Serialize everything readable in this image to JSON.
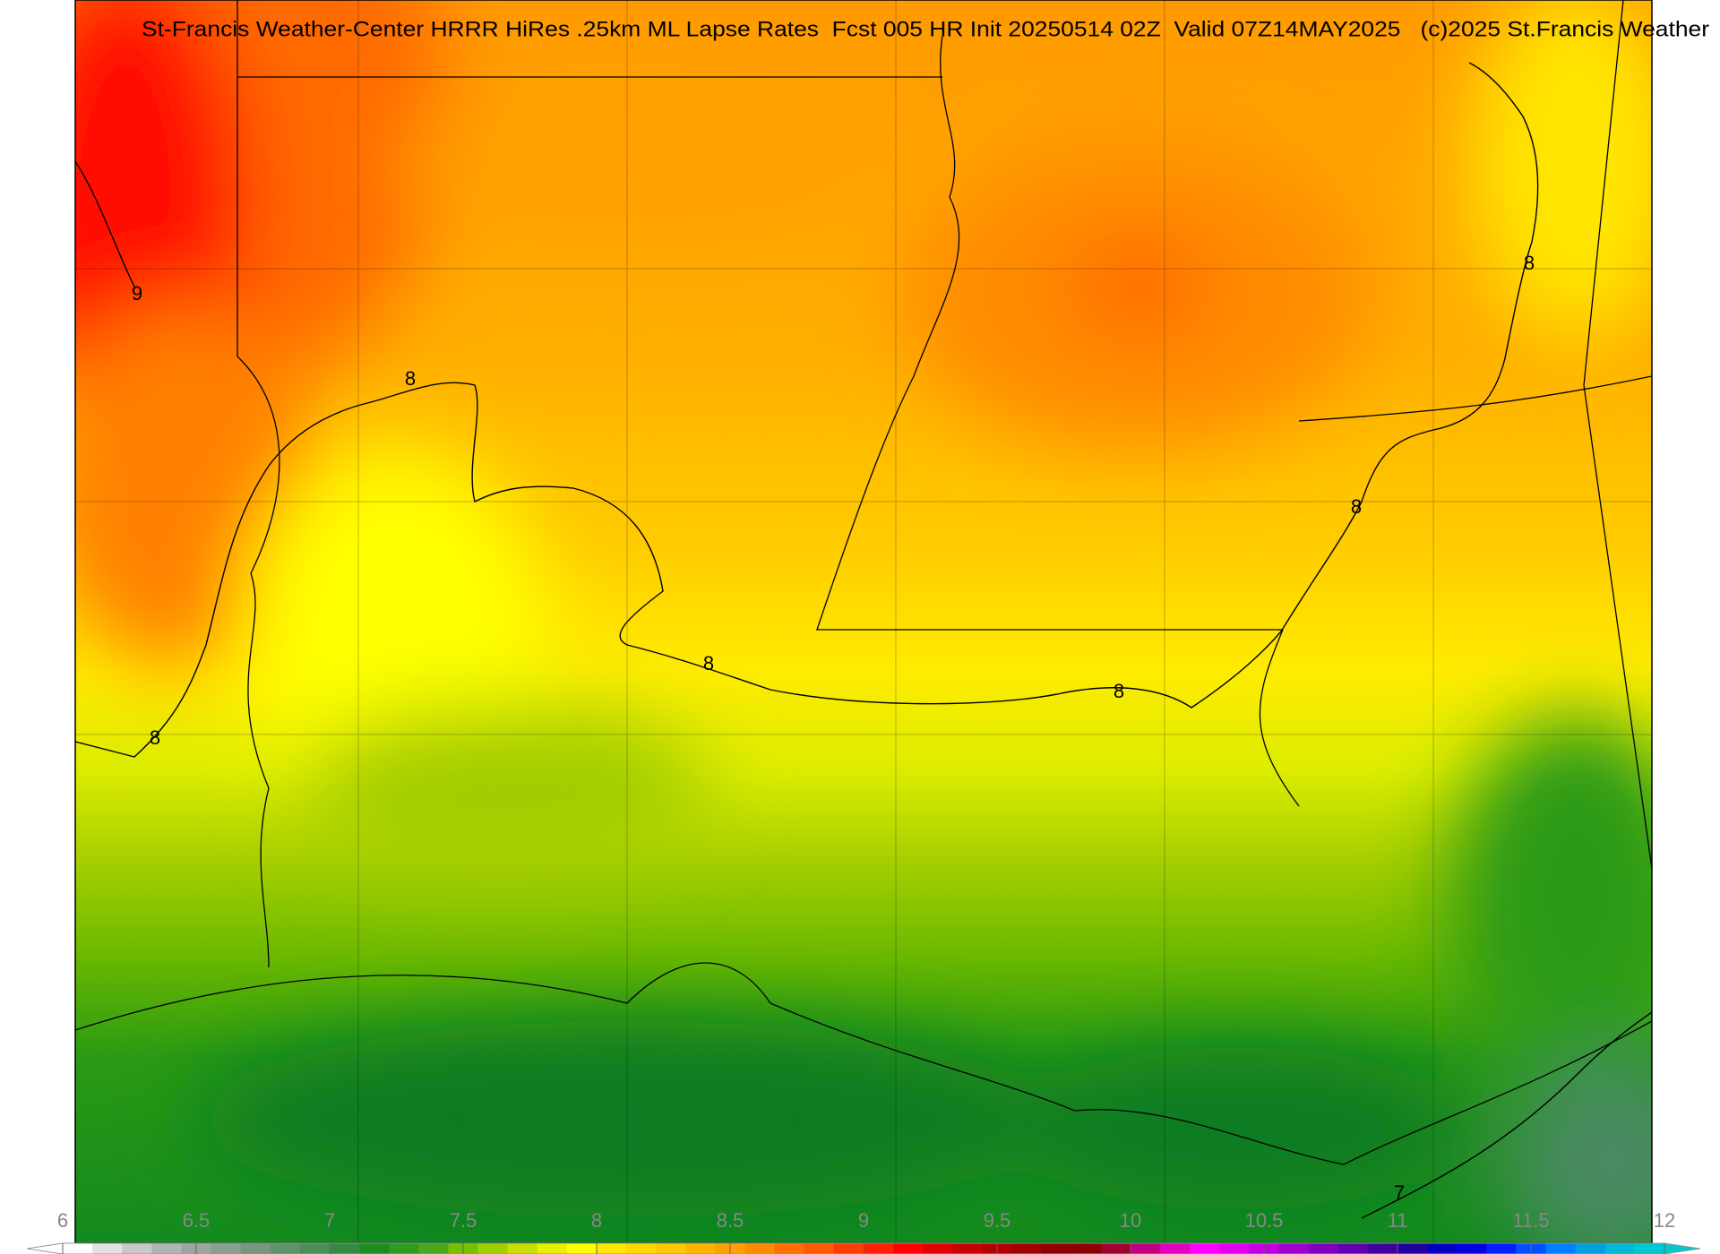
{
  "title": "St-Francis Weather-Center HRRR HiRes .25km ML Lapse Rates  Fcst 005 HR Init 20250514 02Z  Valid 07Z14MAY2025   (c)2025 St.Francis Weather",
  "contour_labels": [
    "9",
    "8",
    "8",
    "8",
    "8",
    "8",
    "8",
    "7"
  ],
  "colorbar": {
    "lim": [
      6,
      12
    ],
    "ticks": [
      6,
      6.5,
      7,
      7.5,
      8,
      8.5,
      9,
      9.5,
      10,
      10.5,
      11,
      11.5,
      12
    ],
    "colors": [
      "#ffffff",
      "#e2e2e2",
      "#c8c8c8",
      "#b0b4b2",
      "#9aa7a0",
      "#88a090",
      "#76987e",
      "#5f946a",
      "#4a8e58",
      "#348a40",
      "#1e8c1e",
      "#2e9c1e",
      "#4aa81a",
      "#77c000",
      "#a0d000",
      "#c8e000",
      "#e8f000",
      "#ffff00",
      "#ffe800",
      "#ffd800",
      "#ffc800",
      "#ffb400",
      "#ffa000",
      "#ff8c00",
      "#ff7000",
      "#ff5a00",
      "#ff3c00",
      "#ff2000",
      "#ff0000",
      "#e00000",
      "#c80000",
      "#b40000",
      "#a00000",
      "#900000",
      "#8c0000",
      "#a00030",
      "#c00080",
      "#e000c0",
      "#ff00ff",
      "#e000f0",
      "#c000e0",
      "#a000d0",
      "#8000c0",
      "#6000b0",
      "#4000a0",
      "#2000a0",
      "#0000c0",
      "#0000e0",
      "#0020ff",
      "#0050ff",
      "#0080ff",
      "#00a0e0",
      "#00b8d8",
      "#00c8d0"
    ]
  }
}
